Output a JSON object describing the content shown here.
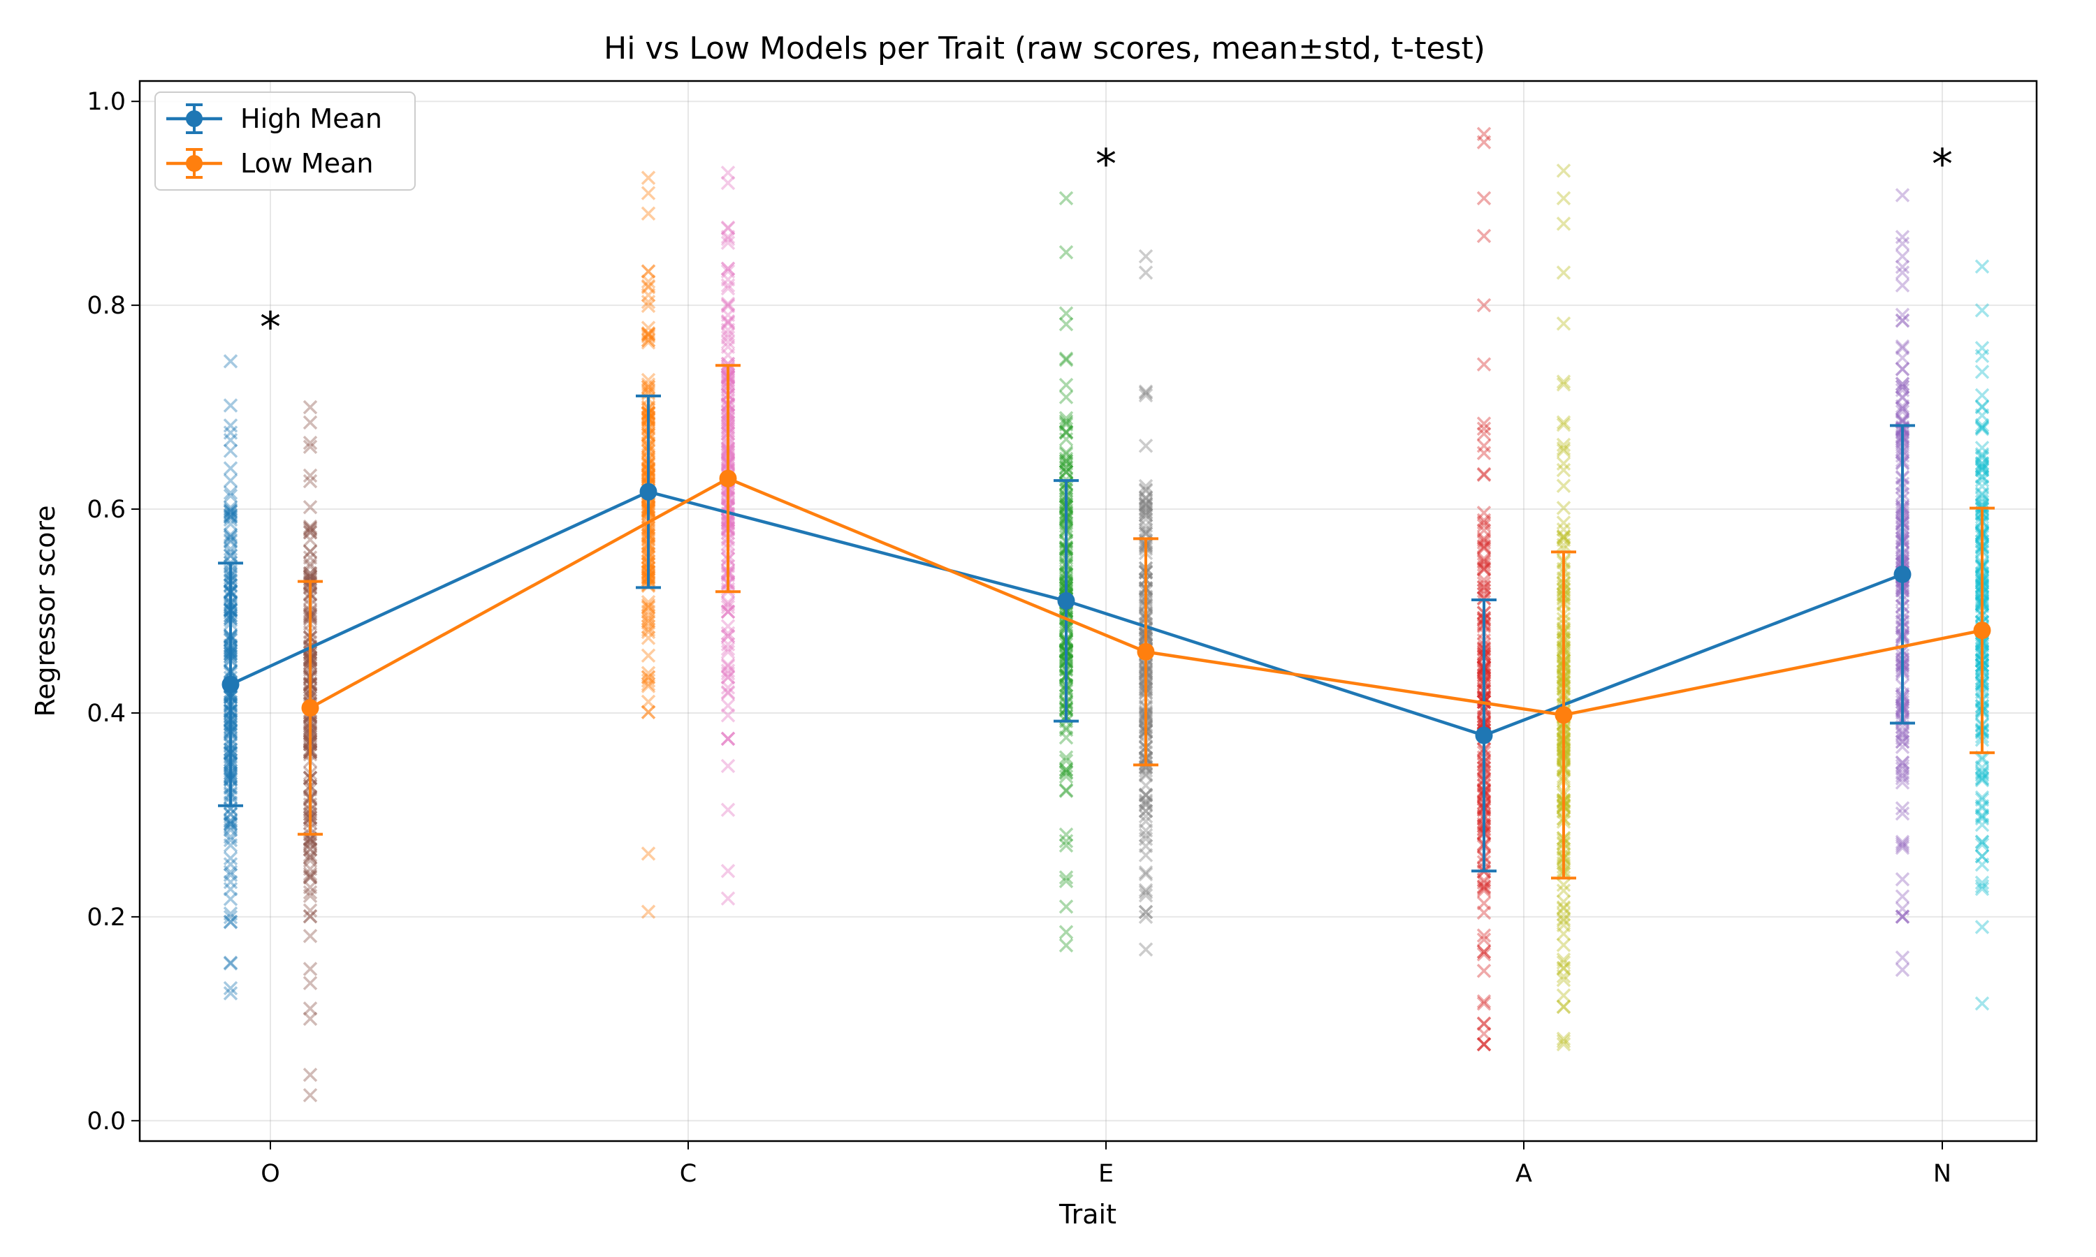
{
  "chart_data": {
    "type": "scatter",
    "title": "Hi vs Low Models per Trait (raw scores, mean±std, t-test)",
    "xlabel": "Trait",
    "ylabel": "Regressor score",
    "categories": [
      "O",
      "C",
      "E",
      "A",
      "N"
    ],
    "ylim": [
      -0.02,
      1.02
    ],
    "yticks": [
      0.0,
      0.2,
      0.4,
      0.6,
      0.8,
      1.0
    ],
    "ytick_labels": [
      "0.0",
      "0.2",
      "0.4",
      "0.6",
      "0.8",
      "1.0"
    ],
    "grid": true,
    "legend_position": "top-left",
    "series": [
      {
        "name": "High Mean",
        "color": "#1f77b4",
        "mean": [
          0.428,
          0.617,
          0.51,
          0.378,
          0.536
        ],
        "std": [
          0.119,
          0.094,
          0.118,
          0.133,
          0.146
        ]
      },
      {
        "name": "Low Mean",
        "color": "#ff7f0e",
        "mean": [
          0.405,
          0.63,
          0.46,
          0.398,
          0.481
        ],
        "std": [
          0.124,
          0.111,
          0.111,
          0.16,
          0.12
        ]
      }
    ],
    "raw_scores": [
      {
        "category": "O",
        "group": "high",
        "color": "#1f77b4",
        "min": 0.125,
        "max": 0.745,
        "mean": 0.428,
        "std": 0.119,
        "outliers": [
          0.745,
          0.682,
          0.675,
          0.64,
          0.13,
          0.125,
          0.155
        ]
      },
      {
        "category": "O",
        "group": "low",
        "color": "#8c564b",
        "min": 0.025,
        "max": 0.7,
        "mean": 0.405,
        "std": 0.124,
        "outliers": [
          0.7,
          0.685,
          0.665,
          0.11,
          0.1,
          0.045,
          0.025
        ]
      },
      {
        "category": "C",
        "group": "high",
        "color": "#ff7f0e",
        "min": 0.205,
        "max": 0.925,
        "mean": 0.617,
        "std": 0.094,
        "outliers": [
          0.925,
          0.91,
          0.89,
          0.81,
          0.262,
          0.205,
          0.435
        ]
      },
      {
        "category": "C",
        "group": "low",
        "color": "#e377c2",
        "min": 0.218,
        "max": 0.93,
        "mean": 0.63,
        "std": 0.111,
        "outliers": [
          0.93,
          0.92,
          0.865,
          0.348,
          0.305,
          0.245,
          0.218,
          0.425
        ]
      },
      {
        "category": "E",
        "group": "high",
        "color": "#2ca02c",
        "min": 0.172,
        "max": 0.905,
        "mean": 0.51,
        "std": 0.118,
        "outliers": [
          0.905,
          0.852,
          0.792,
          0.27,
          0.235,
          0.21,
          0.185,
          0.172
        ]
      },
      {
        "category": "E",
        "group": "low",
        "color": "#7f7f7f",
        "min": 0.168,
        "max": 0.848,
        "mean": 0.46,
        "std": 0.111,
        "outliers": [
          0.848,
          0.832,
          0.2,
          0.168
        ]
      },
      {
        "category": "A",
        "group": "high",
        "color": "#d62728",
        "min": 0.075,
        "max": 0.968,
        "mean": 0.378,
        "std": 0.133,
        "outliers": [
          0.968,
          0.96,
          0.905,
          0.868,
          0.8,
          0.742,
          0.655,
          0.117,
          0.095,
          0.075
        ]
      },
      {
        "category": "A",
        "group": "low",
        "color": "#bcbd22",
        "min": 0.075,
        "max": 0.932,
        "mean": 0.398,
        "std": 0.16,
        "outliers": [
          0.932,
          0.905,
          0.88,
          0.832,
          0.782,
          0.725,
          0.15,
          0.112,
          0.078
        ]
      },
      {
        "category": "N",
        "group": "high",
        "color": "#9467bd",
        "min": 0.148,
        "max": 0.908,
        "mean": 0.536,
        "std": 0.146,
        "outliers": [
          0.908,
          0.848,
          0.832,
          0.22,
          0.208,
          0.16,
          0.148
        ]
      },
      {
        "category": "N",
        "group": "low",
        "color": "#17becf",
        "min": 0.115,
        "max": 0.838,
        "mean": 0.481,
        "std": 0.12,
        "outliers": [
          0.838,
          0.795,
          0.758,
          0.23,
          0.19,
          0.115
        ]
      }
    ],
    "significance": [
      {
        "category": "O",
        "label": "*",
        "y": 0.785
      },
      {
        "category": "E",
        "label": "*",
        "y": 0.945
      },
      {
        "category": "N",
        "label": "*",
        "y": 0.945
      }
    ]
  }
}
